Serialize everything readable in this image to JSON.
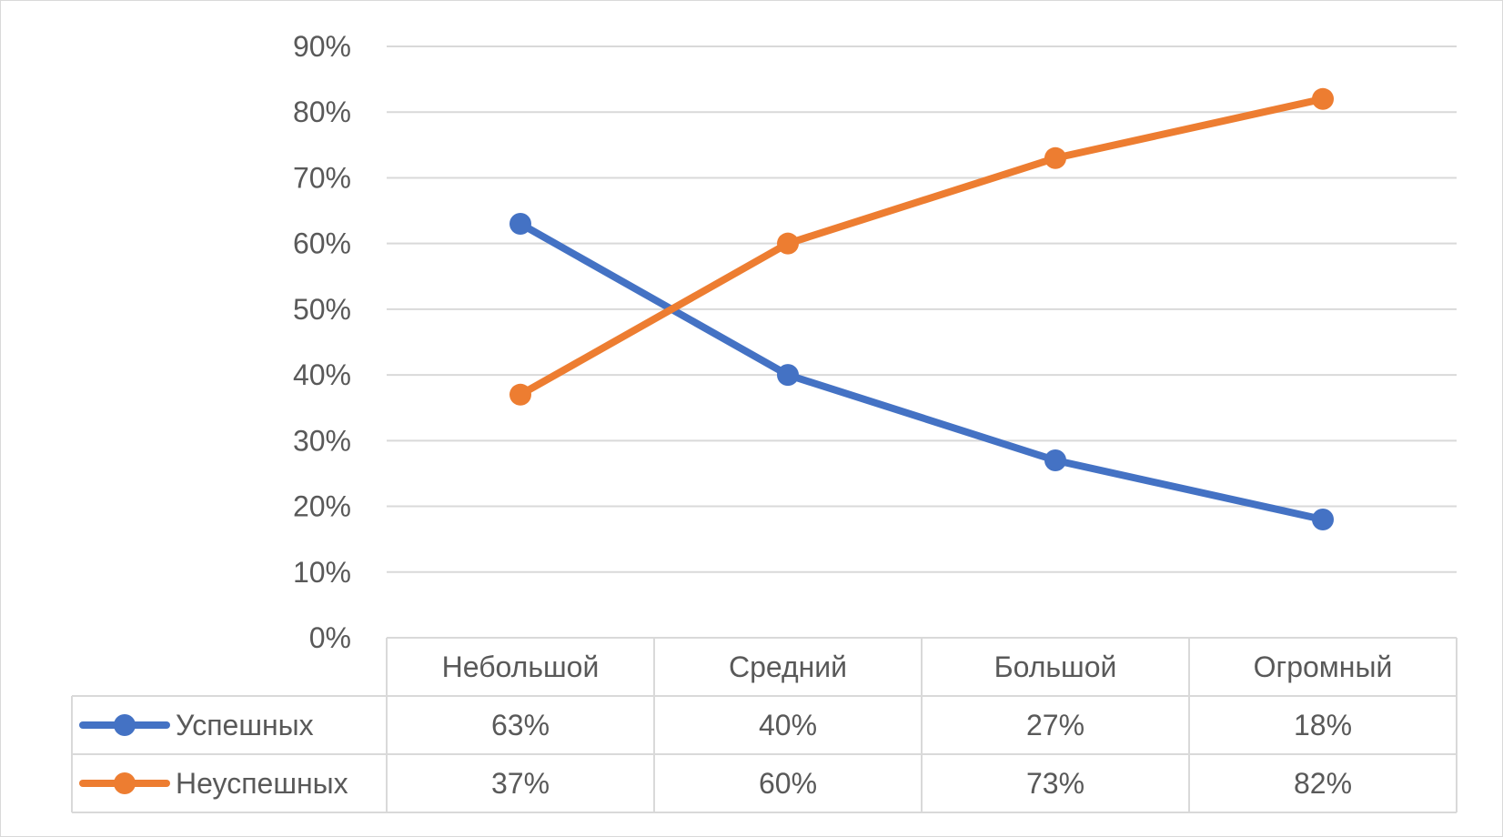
{
  "chart_data": {
    "type": "line",
    "categories": [
      "Небольшой",
      "Средний",
      "Большой",
      "Огромный"
    ],
    "series": [
      {
        "name": "Успешных",
        "values": [
          63,
          40,
          27,
          18
        ],
        "labels": [
          "63%",
          "40%",
          "27%",
          "18%"
        ],
        "color": "#4472C4"
      },
      {
        "name": "Неуспешных",
        "values": [
          37,
          60,
          73,
          82
        ],
        "labels": [
          "37%",
          "60%",
          "73%",
          "82%"
        ],
        "color": "#ED7D31"
      }
    ],
    "y_ticks": [
      "0%",
      "10%",
      "20%",
      "30%",
      "40%",
      "50%",
      "60%",
      "70%",
      "80%",
      "90%"
    ],
    "ylim": [
      0,
      90
    ],
    "y_unit": "%",
    "grid": true,
    "data_table": true,
    "legend": "data-table",
    "title": "",
    "xlabel": "",
    "ylabel": ""
  },
  "colors": {
    "gridline": "#d9d9d9",
    "text": "#595959"
  }
}
